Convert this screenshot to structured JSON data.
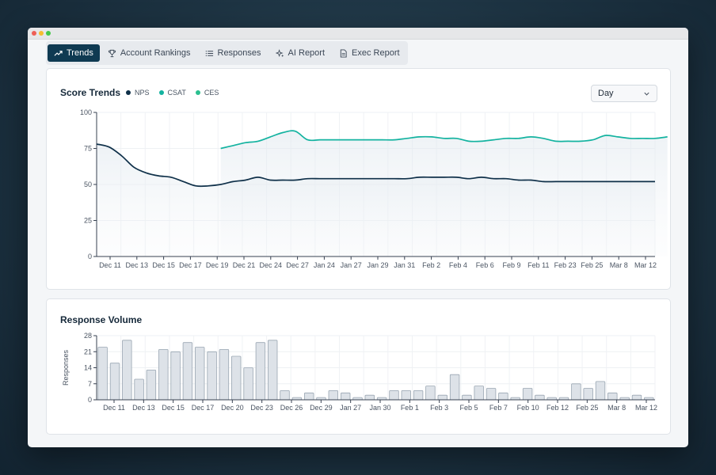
{
  "tabs": [
    {
      "label": "Trends",
      "icon": "trend-up-icon",
      "active": true
    },
    {
      "label": "Account Rankings",
      "icon": "trophy-icon",
      "active": false
    },
    {
      "label": "Responses",
      "icon": "list-icon",
      "active": false
    },
    {
      "label": "AI Report",
      "icon": "sparkle-icon",
      "active": false
    },
    {
      "label": "Exec Report",
      "icon": "document-icon",
      "active": false
    }
  ],
  "score_trends": {
    "title": "Score Trends",
    "granularity": "Day"
  },
  "response_volume": {
    "title": "Response Volume"
  },
  "colors": {
    "nps": "#0f3049",
    "csat": "#14b3a0",
    "ces": "#2bbf8f",
    "bar_fill": "#dde2e8",
    "bar_stroke": "#9aa6b2"
  },
  "chart_data": [
    {
      "type": "line",
      "title": "Score Trends",
      "legend": [
        "NPS",
        "CSAT",
        "CES"
      ],
      "legend_placement": "top-left",
      "ylim": [
        0,
        100
      ],
      "yticks": [
        0,
        25,
        50,
        75,
        100
      ],
      "x_tick_labels": [
        "Dec 11",
        "Dec 13",
        "Dec 15",
        "Dec 17",
        "Dec 19",
        "Dec 21",
        "Dec 24",
        "Dec 27",
        "Jan 24",
        "Jan 27",
        "Jan 29",
        "Jan 31",
        "Feb 2",
        "Feb 4",
        "Feb 6",
        "Feb 9",
        "Feb 11",
        "Feb 23",
        "Feb 25",
        "Mar 8",
        "Mar 12"
      ],
      "x_count": 46,
      "series": [
        {
          "name": "NPS",
          "start_index": 0,
          "values": [
            78,
            76,
            70,
            62,
            58,
            56,
            55,
            52,
            49,
            49,
            50,
            52,
            53,
            55,
            53,
            53,
            53,
            54,
            54,
            54,
            54,
            54,
            54,
            54,
            54,
            54,
            55,
            55,
            55,
            55,
            54,
            55,
            54,
            54,
            53,
            53,
            52,
            52,
            52,
            52,
            52,
            52,
            52,
            52,
            52,
            52
          ]
        },
        {
          "name": "CSAT",
          "start_index": 10,
          "values": [
            75,
            77,
            79,
            80,
            83,
            86,
            87,
            81,
            81,
            81,
            81,
            81,
            81,
            81,
            81,
            82,
            83,
            83,
            82,
            82,
            80,
            80,
            81,
            82,
            82,
            83,
            82,
            80,
            80,
            80,
            81,
            84,
            83,
            82,
            82,
            82,
            83
          ]
        },
        {
          "name": "CES",
          "values": []
        }
      ],
      "grid": true
    },
    {
      "type": "bar",
      "title": "Response Volume",
      "ylabel": "Responses",
      "ylim": [
        0,
        28
      ],
      "yticks": [
        0,
        7,
        14,
        21,
        28
      ],
      "x_tick_labels": [
        "Dec 11",
        "Dec 13",
        "Dec 15",
        "Dec 17",
        "Dec 20",
        "Dec 23",
        "Dec 26",
        "Dec 29",
        "Jan 27",
        "Jan 30",
        "Feb 1",
        "Feb 3",
        "Feb 5",
        "Feb 7",
        "Feb 10",
        "Feb 12",
        "Feb 25",
        "Mar 8",
        "Mar 12"
      ],
      "values": [
        23,
        16,
        26,
        9,
        13,
        22,
        21,
        25,
        23,
        21,
        22,
        19,
        14,
        25,
        26,
        4,
        1,
        3,
        1,
        4,
        3,
        1,
        2,
        1,
        4,
        4,
        4,
        6,
        2,
        11,
        2,
        6,
        5,
        3,
        1,
        5,
        2,
        1,
        1,
        7,
        5,
        8,
        3,
        1,
        2,
        1
      ],
      "grid": true
    }
  ]
}
